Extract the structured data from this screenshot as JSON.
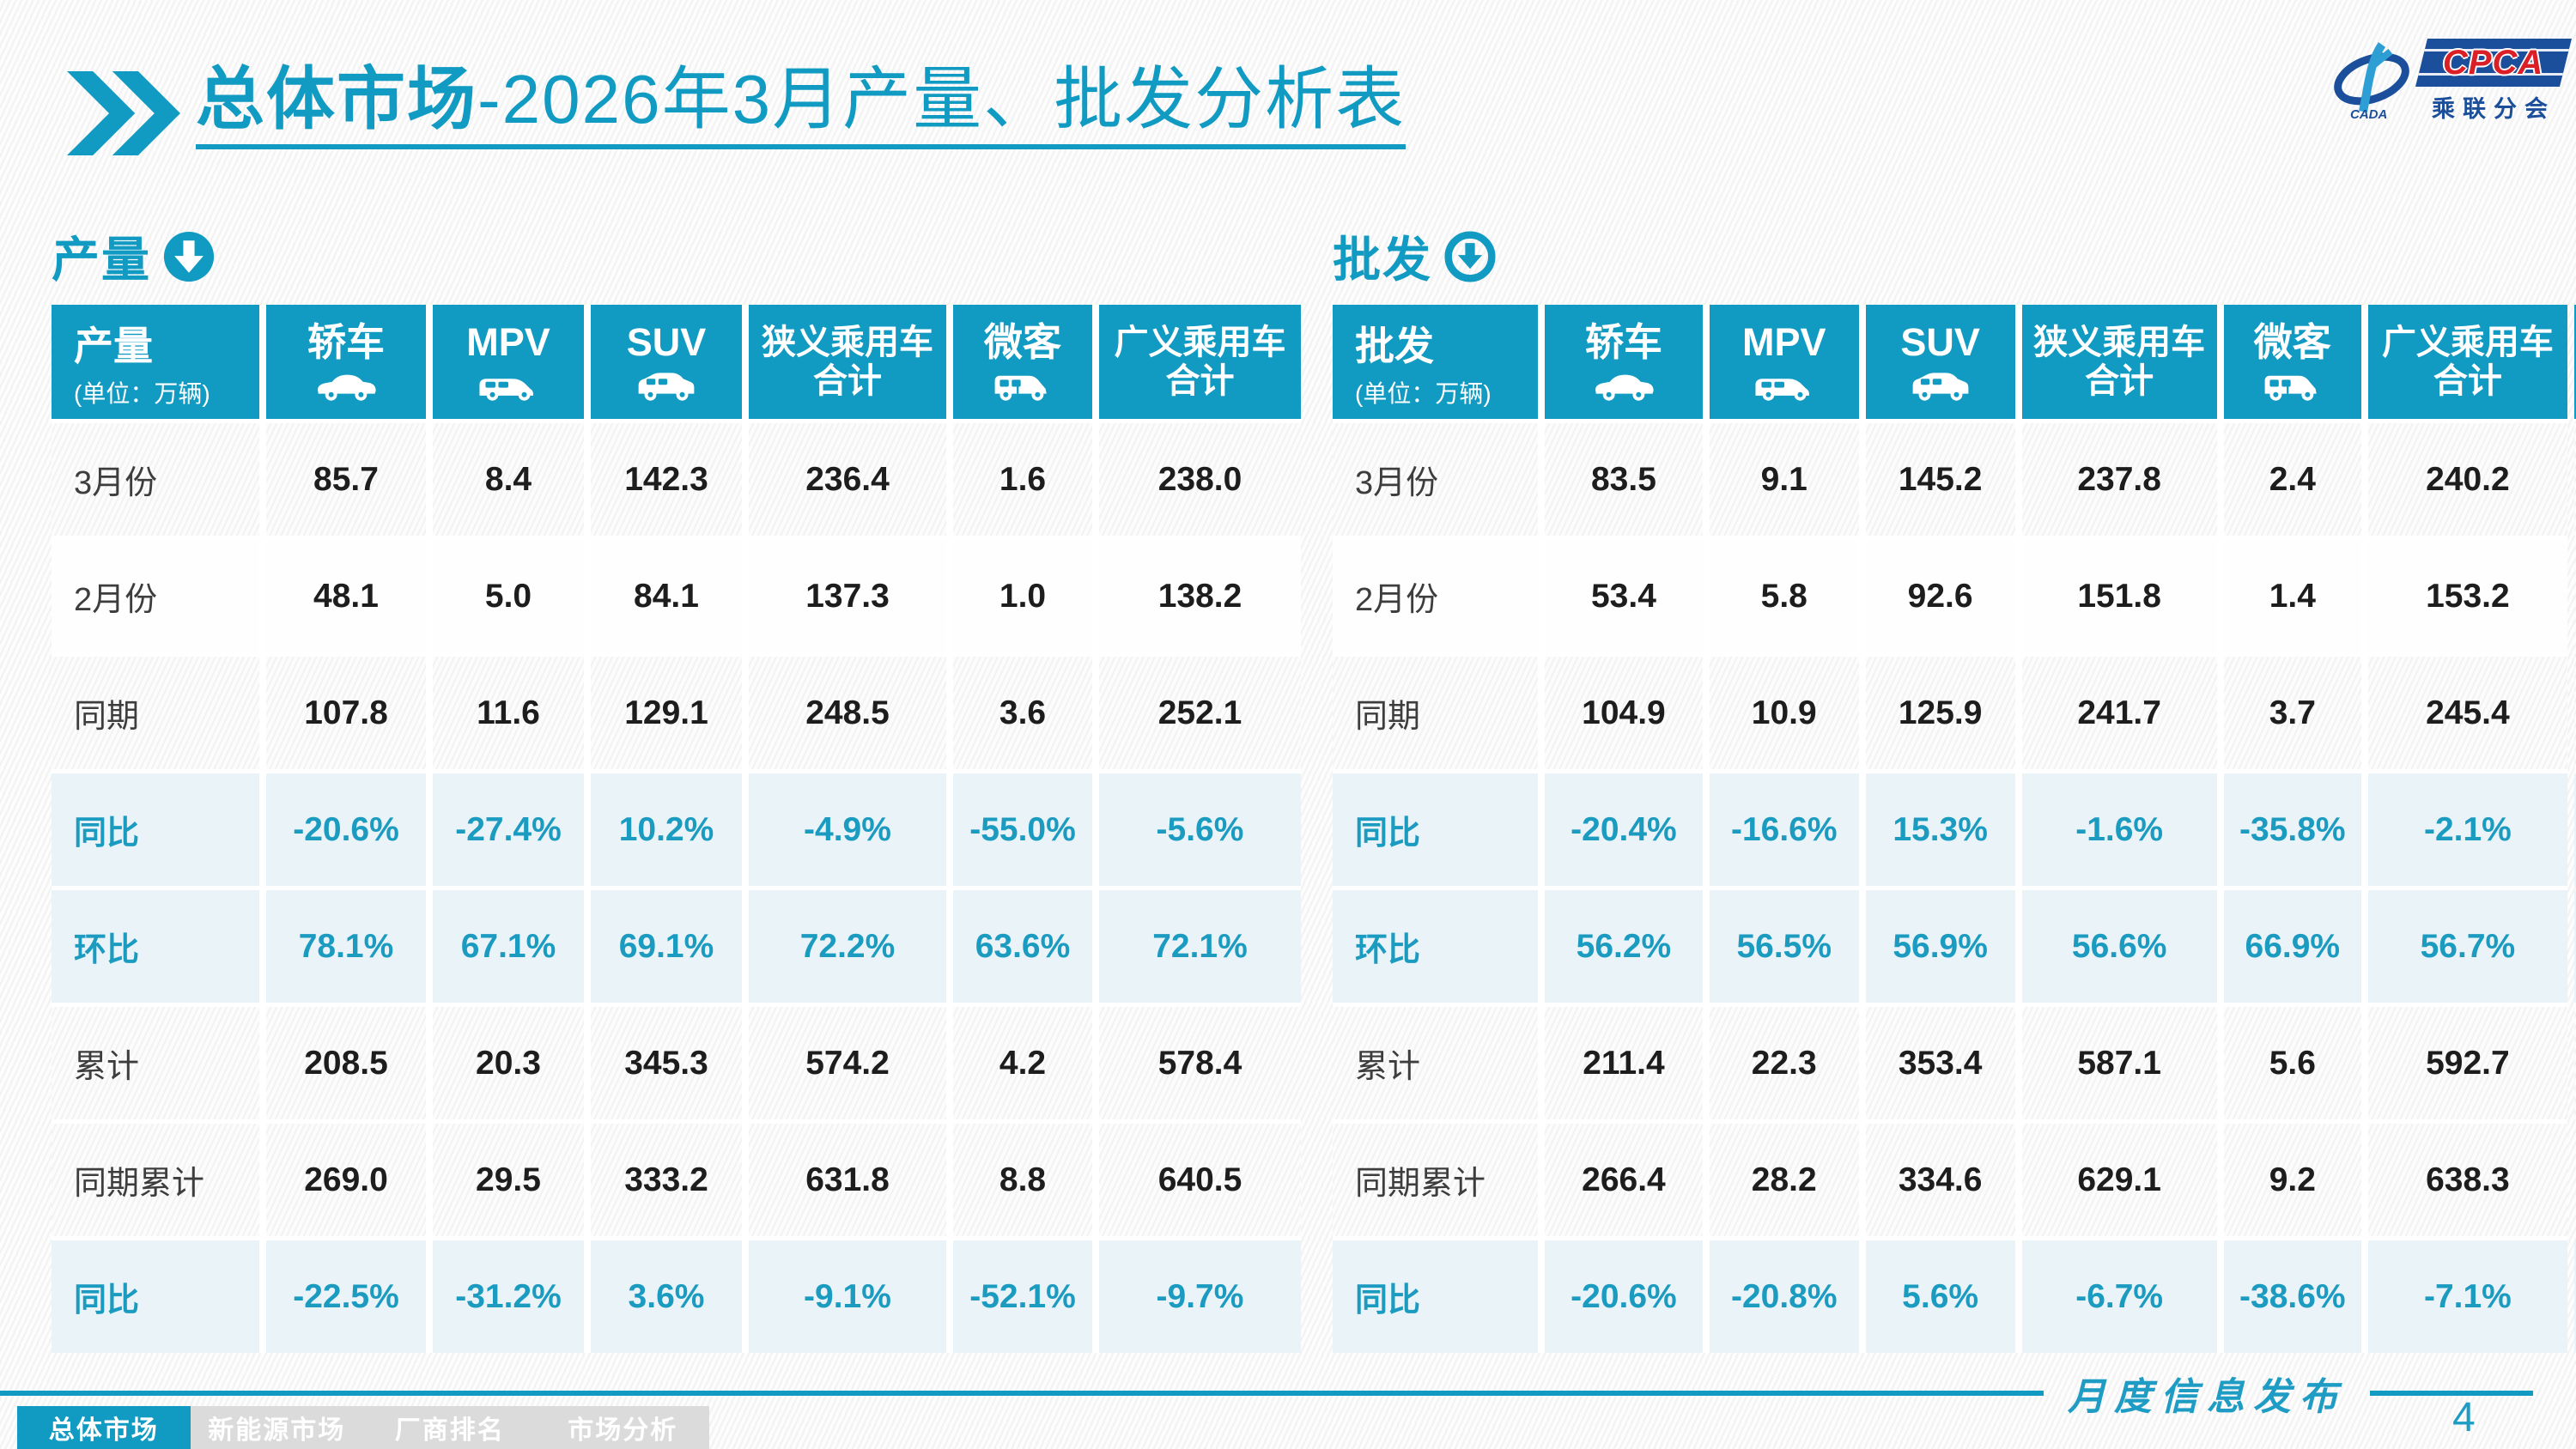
{
  "page": {
    "title_emphasis": "总体市场",
    "title_rest": "-2026年3月产量、批发分析表",
    "ribbon_label": "月度信息发布",
    "page_number": "4"
  },
  "logo": {
    "cpca": "CPCA",
    "cada": "CADA",
    "subtitle": "乘联分会"
  },
  "watermark_text": "乘联分会",
  "columns": [
    {
      "label": "轿车",
      "icon": "sedan-icon"
    },
    {
      "label": "MPV",
      "icon": "mpv-icon"
    },
    {
      "label": "SUV",
      "icon": "suv-icon"
    },
    {
      "label": "狭义乘用车",
      "label2": "合计",
      "icon": null
    },
    {
      "label": "微客",
      "icon": "microvan-icon"
    },
    {
      "label": "广义乘用车",
      "label2": "合计",
      "icon": null
    }
  ],
  "sections": [
    {
      "id": "production",
      "section_title": "产量",
      "corner_title": "产量",
      "unit_label": "(单位：万辆)",
      "icon_style": "solid",
      "rows": [
        {
          "label": "3月份",
          "type": "value",
          "values": [
            "85.7",
            "8.4",
            "142.3",
            "236.4",
            "1.6",
            "238.0"
          ]
        },
        {
          "label": "2月份",
          "type": "value",
          "plain": true,
          "values": [
            "48.1",
            "5.0",
            "84.1",
            "137.3",
            "1.0",
            "138.2"
          ]
        },
        {
          "label": "同期",
          "type": "value",
          "values": [
            "107.8",
            "11.6",
            "129.1",
            "248.5",
            "3.6",
            "252.1"
          ]
        },
        {
          "label": "同比",
          "type": "percent",
          "values": [
            "-20.6%",
            "-27.4%",
            "10.2%",
            "-4.9%",
            "-55.0%",
            "-5.6%"
          ]
        },
        {
          "label": "环比",
          "type": "percent",
          "values": [
            "78.1%",
            "67.1%",
            "69.1%",
            "72.2%",
            "63.6%",
            "72.1%"
          ]
        },
        {
          "label": "累计",
          "type": "value",
          "values": [
            "208.5",
            "20.3",
            "345.3",
            "574.2",
            "4.2",
            "578.4"
          ]
        },
        {
          "label": "同期累计",
          "type": "value",
          "values": [
            "269.0",
            "29.5",
            "333.2",
            "631.8",
            "8.8",
            "640.5"
          ]
        },
        {
          "label": "同比",
          "type": "percent",
          "values": [
            "-22.5%",
            "-31.2%",
            "3.6%",
            "-9.1%",
            "-52.1%",
            "-9.7%"
          ]
        }
      ]
    },
    {
      "id": "wholesale",
      "section_title": "批发",
      "corner_title": "批发",
      "unit_label": "(单位：万辆)",
      "icon_style": "ring",
      "rows": [
        {
          "label": "3月份",
          "type": "value",
          "values": [
            "83.5",
            "9.1",
            "145.2",
            "237.8",
            "2.4",
            "240.2"
          ]
        },
        {
          "label": "2月份",
          "type": "value",
          "plain": true,
          "values": [
            "53.4",
            "5.8",
            "92.6",
            "151.8",
            "1.4",
            "153.2"
          ]
        },
        {
          "label": "同期",
          "type": "value",
          "values": [
            "104.9",
            "10.9",
            "125.9",
            "241.7",
            "3.7",
            "245.4"
          ]
        },
        {
          "label": "同比",
          "type": "percent",
          "values": [
            "-20.4%",
            "-16.6%",
            "15.3%",
            "-1.6%",
            "-35.8%",
            "-2.1%"
          ]
        },
        {
          "label": "环比",
          "type": "percent",
          "values": [
            "56.2%",
            "56.5%",
            "56.9%",
            "56.6%",
            "66.9%",
            "56.7%"
          ]
        },
        {
          "label": "累计",
          "type": "value",
          "values": [
            "211.4",
            "22.3",
            "353.4",
            "587.1",
            "5.6",
            "592.7"
          ]
        },
        {
          "label": "同期累计",
          "type": "value",
          "values": [
            "266.4",
            "28.2",
            "334.6",
            "629.1",
            "9.2",
            "638.3"
          ]
        },
        {
          "label": "同比",
          "type": "percent",
          "values": [
            "-20.6%",
            "-20.8%",
            "5.6%",
            "-6.7%",
            "-38.6%",
            "-7.1%"
          ]
        }
      ]
    }
  ],
  "tabs": [
    {
      "label": "总体市场",
      "active": true
    },
    {
      "label": "新能源市场",
      "active": false
    },
    {
      "label": "厂商排名",
      "active": false
    },
    {
      "label": "市场分析",
      "active": false
    }
  ],
  "colors": {
    "accent": "#129BC2",
    "row_highlight": "#E9F3F8",
    "percent_text": "#1C9BC0",
    "logo_navy": "#1B4E9B",
    "logo_red": "#DB1F26"
  }
}
